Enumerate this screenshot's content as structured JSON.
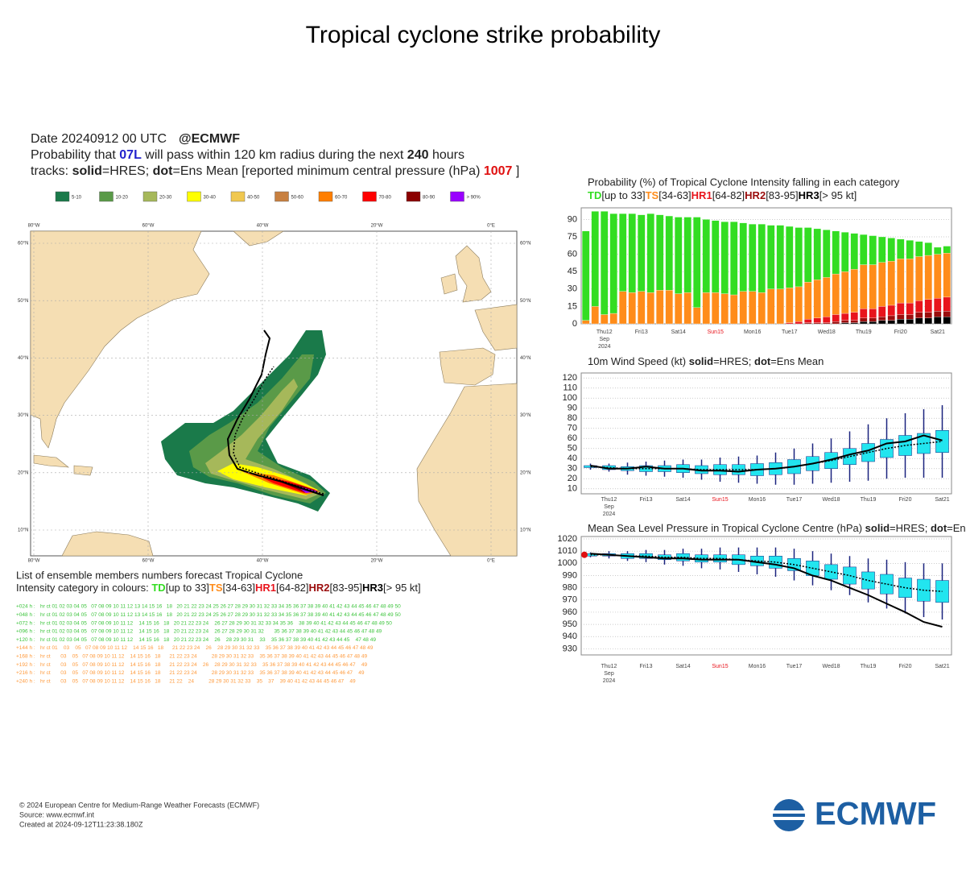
{
  "title": "Tropical cyclone strike probability",
  "header": {
    "date": "Date 20240912 00 UTC",
    "brand": "@ECMWF",
    "line2": [
      {
        "text": "Probability that "
      },
      {
        "text": "07L",
        "color": "#2222cc",
        "bold": true
      },
      {
        "text": " will pass within 120 km radius during the next "
      },
      {
        "text": "240",
        "bold": true
      },
      {
        "text": " hours"
      }
    ],
    "line3": [
      {
        "text": "tracks: "
      },
      {
        "text": "solid",
        "bold": true
      },
      {
        "text": "=HRES; "
      },
      {
        "text": "dot",
        "bold": true
      },
      {
        "text": "=Ens Mean [reported minimum central pressure (hPa) "
      },
      {
        "text": "1007",
        "color": "#e01010",
        "bold": true
      },
      {
        "text": " ]"
      }
    ]
  },
  "map": {
    "legend": [
      {
        "label": "5-10",
        "color": "#1a7a4a"
      },
      {
        "label": "10-20",
        "color": "#5a9a48"
      },
      {
        "label": "20-30",
        "color": "#a6b85a"
      },
      {
        "label": "30-40",
        "color": "#ffff00"
      },
      {
        "label": "40-50",
        "color": "#f0c850"
      },
      {
        "label": "50-60",
        "color": "#c88040"
      },
      {
        "label": "60-70",
        "color": "#ff7f00"
      },
      {
        "label": "70-80",
        "color": "#ff0000"
      },
      {
        "label": "80-90",
        "color": "#8b0000"
      },
      {
        "label": "> 90%",
        "color": "#9900ff"
      }
    ],
    "lonticks": [
      {
        "value": -80,
        "label": "80°W"
      },
      {
        "value": -60,
        "label": "60°W"
      },
      {
        "value": -40,
        "label": "40°W"
      },
      {
        "value": -20,
        "label": "20°W"
      },
      {
        "value": 0,
        "label": "0°E"
      }
    ],
    "latticks": [
      {
        "value": 60,
        "label": "60°N"
      },
      {
        "value": 50,
        "label": "50°N"
      },
      {
        "value": 40,
        "label": "40°N"
      },
      {
        "value": 30,
        "label": "30°N"
      },
      {
        "value": 20,
        "label": "20°N"
      },
      {
        "value": 10,
        "label": "10°N"
      }
    ]
  },
  "members": {
    "title": "List of ensemble members numbers forecast Tropical Cyclone",
    "intensity_label": "Intensity category in colours: ",
    "rows": [
      {
        "lead": "+024 h :",
        "color": "#3cc43c",
        "list": "hr ct 01 02 03 04 05   07 08 09 10 11 12 13 14 15 16   18   20 21 22 23 24 25 26 27 28 29 30 31 32 33 34 35 36 37 38 39 40 41 42 43 44 45 46 47 48 49 50"
      },
      {
        "lead": "+048 h :",
        "color": "#3cc43c",
        "list": "hr ct 01 02 03 04 05   07 08 09 10 11 12 13 14 15 16   18   20 21 22 23 24 25 26 27 28 29 30 31 32 33 34 35 36 37 38 39 40 41 42 43 44 45 46 47 48 49 50"
      },
      {
        "lead": "+072 h :",
        "color": "#3cc43c",
        "list": "hr ct 01 02 03 04 05   07 08 09 10 11 12    14 15 16   18   20 21 22 23 24    26 27 28 29 30 31 32 33 34 35 36    38 39 40 41 42 43 44 45 46 47 48 49 50"
      },
      {
        "lead": "+096 h :",
        "color": "#3cc43c",
        "list": "hr ct 01 02 03 04 05   07 08 09 10 11 12    14 15 16   18   20 21 22 23 24    26 27 28 29 30 31 32       35 36 37 38 39 40 41 42 43 44 45 46 47 48 49"
      },
      {
        "lead": "+120 h :",
        "color": "#3cc43c",
        "list": "hr ct 01 02 03 04 05   07 08 09 10 11 12    14 15 16   18   20 21 22 23 24    26    28 29 30 31    33    35 36 37 38 39 40 41 42 43 44 45    47 48 49"
      },
      {
        "lead": "+144 h :",
        "color": "#ff9a3c",
        "list": "hr ct 01    03    05   07 08 09 10 11 12    14 15 16   18      21 22 23 24    26    28 29 30 31 32 33    35 36 37 38 39 40 41 42 43 44 45 46 47 48 49"
      },
      {
        "lead": "+168 h :",
        "color": "#ff9a3c",
        "list": "hr ct       03    05   07 08 09 10 11 12    14 15 16   18      21 22 23 24          28 29 30 31 32 33    35 36 37 38 39 40 41 42 43 44 45 46 47 48 49"
      },
      {
        "lead": "+192 h :",
        "color": "#ff9a3c",
        "list": "hr ct       03    05   07 08 09 10 11 12    14 15 16   18      21 22 23 24    26    28 29 30 31 32 33    35 36 37 38 39 40 41 42 43 44 45 46 47    49"
      },
      {
        "lead": "+216 h :",
        "color": "#ff9a3c",
        "list": "hr ct       03    05   07 08 09 10 11 12    14 15 16   18      21 22 23 24          28 29 30 31 32 33    35 36 37 38 39 40 41 42 43 44 45 46 47    49"
      },
      {
        "lead": "+240 h :",
        "color": "#ff9a3c",
        "list": "hr ct       03    05   07 08 09 10 11 12    14 15 16   18      21 22    24          28 29 30 31 32 33    35    37    39 40 41 42 43 44 45 46 47    49"
      }
    ]
  },
  "chart_data": [
    {
      "type": "bar",
      "stacked": true,
      "grid": true,
      "title": "Probability (%) of Tropical Cyclone Intensity falling in each category",
      "categories": [
        null,
        null,
        "Thu12",
        null,
        null,
        null,
        "Fri13",
        null,
        null,
        null,
        "Sat14",
        null,
        null,
        null,
        "Sun15",
        null,
        null,
        null,
        "Mon16",
        null,
        null,
        null,
        "Tue17",
        null,
        null,
        null,
        "Wed18",
        null,
        null,
        null,
        "Thu19",
        null,
        null,
        null,
        "Fri20",
        null,
        null,
        null,
        "Sat21",
        null
      ],
      "highlight_category": "Sun15",
      "highlight_color": "#e8141c",
      "date_sub": [
        "Sep",
        "2024"
      ],
      "ylim": [
        0,
        100
      ],
      "yticks": [
        0,
        15,
        30,
        45,
        60,
        75,
        90
      ],
      "series": [
        {
          "name": "TD",
          "range": "[up to 33]",
          "color": "#33dd22",
          "values": [
            77,
            82,
            89,
            86,
            67,
            68,
            66,
            68,
            65,
            64,
            66,
            65,
            78,
            63,
            62,
            62,
            63,
            59,
            58,
            59,
            55,
            55,
            53,
            51,
            47,
            44,
            41,
            37,
            34,
            31,
            26,
            25,
            22,
            20,
            17,
            16,
            13,
            11,
            6,
            6
          ]
        },
        {
          "name": "TS",
          "range": "[34-63]",
          "color": "#ff8c1a",
          "values": [
            3,
            15,
            8,
            9,
            28,
            27,
            28,
            27,
            29,
            29,
            26,
            27,
            14,
            27,
            27,
            26,
            25,
            28,
            28,
            27,
            30,
            30,
            30,
            30,
            32,
            33,
            34,
            35,
            36,
            37,
            38,
            38,
            38,
            38,
            38,
            38,
            38,
            38,
            38,
            38
          ]
        },
        {
          "name": "HR1",
          "range": "[64-82]",
          "color": "#e8141c",
          "values": [
            0,
            0,
            0,
            0,
            0,
            0,
            0,
            0,
            0,
            0,
            0,
            0,
            0,
            0,
            0,
            0,
            0,
            0,
            0,
            0,
            0,
            0,
            1,
            2,
            3,
            4,
            5,
            6,
            6,
            7,
            8,
            8,
            9,
            9,
            10,
            10,
            10,
            11,
            11,
            12
          ]
        },
        {
          "name": "HR2",
          "range": "[83-95]",
          "color": "#9b0d0d",
          "values": [
            0,
            0,
            0,
            0,
            0,
            0,
            0,
            0,
            0,
            0,
            0,
            0,
            0,
            0,
            0,
            0,
            0,
            0,
            0,
            0,
            0,
            0,
            0,
            0,
            1,
            1,
            1,
            2,
            2,
            2,
            3,
            3,
            3,
            4,
            4,
            4,
            5,
            5,
            5,
            5
          ]
        },
        {
          "name": "HR3",
          "range": "[> 95 kt]",
          "color": "#000000",
          "values": [
            0,
            0,
            0,
            0,
            0,
            0,
            0,
            0,
            0,
            0,
            0,
            0,
            0,
            0,
            0,
            0,
            0,
            0,
            0,
            0,
            0,
            0,
            0,
            0,
            0,
            0,
            0,
            0,
            1,
            1,
            2,
            2,
            3,
            3,
            4,
            4,
            5,
            5,
            6,
            6
          ]
        }
      ]
    },
    {
      "type": "box",
      "grid": true,
      "title": [
        {
          "text": "10m Wind Speed (kt) "
        },
        {
          "text": "solid",
          "bold": true
        },
        {
          "text": "=HRES; "
        },
        {
          "text": "dot",
          "bold": true
        },
        {
          "text": "=Ens Mean"
        }
      ],
      "categories": [
        null,
        "Thu12",
        null,
        "Fri13",
        null,
        "Sat14",
        null,
        "Sun15",
        null,
        "Mon16",
        null,
        "Tue17",
        null,
        "Wed18",
        null,
        "Thu19",
        null,
        "Fri20",
        null,
        "Sat21"
      ],
      "highlight_category": "Sun15",
      "highlight_color": "#e8141c",
      "date_sub": [
        "Sep",
        "2024"
      ],
      "ylim": [
        5,
        125
      ],
      "yticks": [
        10,
        20,
        30,
        40,
        50,
        60,
        70,
        80,
        90,
        100,
        110,
        120
      ],
      "box_color": "#22e5ef",
      "whisker_color": "#1a237e",
      "hres": [
        33,
        30,
        30,
        32,
        30,
        30,
        28,
        28,
        27,
        29,
        30,
        32,
        35,
        39,
        44,
        48,
        55,
        57,
        63,
        58
      ],
      "ens_mean": [
        32,
        31,
        30,
        30,
        30,
        30,
        29,
        29,
        29,
        29,
        30,
        32,
        35,
        38,
        42,
        46,
        50,
        53,
        55,
        57
      ],
      "q1": [
        31,
        29,
        28,
        27,
        27,
        26,
        25,
        24,
        24,
        23,
        24,
        25,
        28,
        30,
        34,
        37,
        41,
        43,
        45,
        46
      ],
      "q3": [
        33,
        33,
        32,
        33,
        33,
        34,
        33,
        34,
        34,
        35,
        36,
        39,
        42,
        46,
        50,
        55,
        59,
        63,
        65,
        68
      ],
      "min": [
        29,
        27,
        24,
        23,
        22,
        21,
        19,
        17,
        16,
        15,
        14,
        14,
        15,
        16,
        17,
        18,
        20,
        21,
        21,
        21
      ],
      "max": [
        35,
        35,
        36,
        37,
        38,
        39,
        39,
        41,
        42,
        43,
        46,
        50,
        55,
        60,
        67,
        74,
        80,
        85,
        89,
        93
      ]
    },
    {
      "type": "box",
      "grid": true,
      "title": [
        {
          "text": "Mean Sea Level Pressure in Tropical Cyclone Centre (hPa) "
        },
        {
          "text": "solid",
          "bold": true
        },
        {
          "text": "=HRES; "
        },
        {
          "text": "dot",
          "bold": true
        },
        {
          "text": "=Ens Mean"
        }
      ],
      "categories": [
        null,
        "Thu12",
        null,
        "Fri13",
        null,
        "Sat14",
        null,
        "Sun15",
        null,
        "Mon16",
        null,
        "Tue17",
        null,
        "Wed18",
        null,
        "Thu19",
        null,
        "Fri20",
        null,
        "Sat21"
      ],
      "highlight_category": "Sun15",
      "highlight_color": "#e8141c",
      "date_sub": [
        "Sep",
        "2024"
      ],
      "ylim": [
        925,
        1022
      ],
      "yticks": [
        930,
        940,
        950,
        960,
        970,
        980,
        990,
        1000,
        1010,
        1020
      ],
      "box_color": "#22e5ef",
      "whisker_color": "#1a237e",
      "observed": 1007,
      "observed_color": "#e01010",
      "hres": [
        1008,
        1007,
        1006,
        1005,
        1004,
        1004,
        1003,
        1003,
        1003,
        1001,
        999,
        996,
        990,
        986,
        980,
        974,
        967,
        960,
        952,
        948
      ],
      "ens_mean": [
        1007,
        1007,
        1006,
        1006,
        1005,
        1005,
        1004,
        1004,
        1003,
        1002,
        1001,
        999,
        996,
        993,
        990,
        986,
        983,
        980,
        978,
        977
      ],
      "q1": [
        1006,
        1006,
        1004,
        1004,
        1003,
        1002,
        1001,
        1001,
        999,
        998,
        996,
        994,
        990,
        987,
        983,
        979,
        975,
        972,
        969,
        968
      ],
      "q3": [
        1008,
        1008,
        1008,
        1008,
        1007,
        1008,
        1007,
        1007,
        1007,
        1006,
        1006,
        1004,
        1002,
        999,
        997,
        993,
        991,
        988,
        987,
        986
      ],
      "min": [
        1005,
        1004,
        1002,
        1001,
        999,
        998,
        996,
        995,
        993,
        991,
        989,
        986,
        982,
        978,
        974,
        968,
        963,
        959,
        956,
        954
      ],
      "max": [
        1009,
        1010,
        1010,
        1011,
        1011,
        1012,
        1012,
        1013,
        1013,
        1013,
        1013,
        1012,
        1010,
        1008,
        1006,
        1004,
        1003,
        1001,
        1000,
        1000
      ]
    }
  ],
  "footer": {
    "lines": [
      "© 2024 European Centre for Medium-Range Weather Forecasts (ECMWF)",
      "Source: www.ecmwf.int",
      "Created at 2024-09-12T11:23:38.180Z"
    ],
    "logo": "ECMWF"
  }
}
